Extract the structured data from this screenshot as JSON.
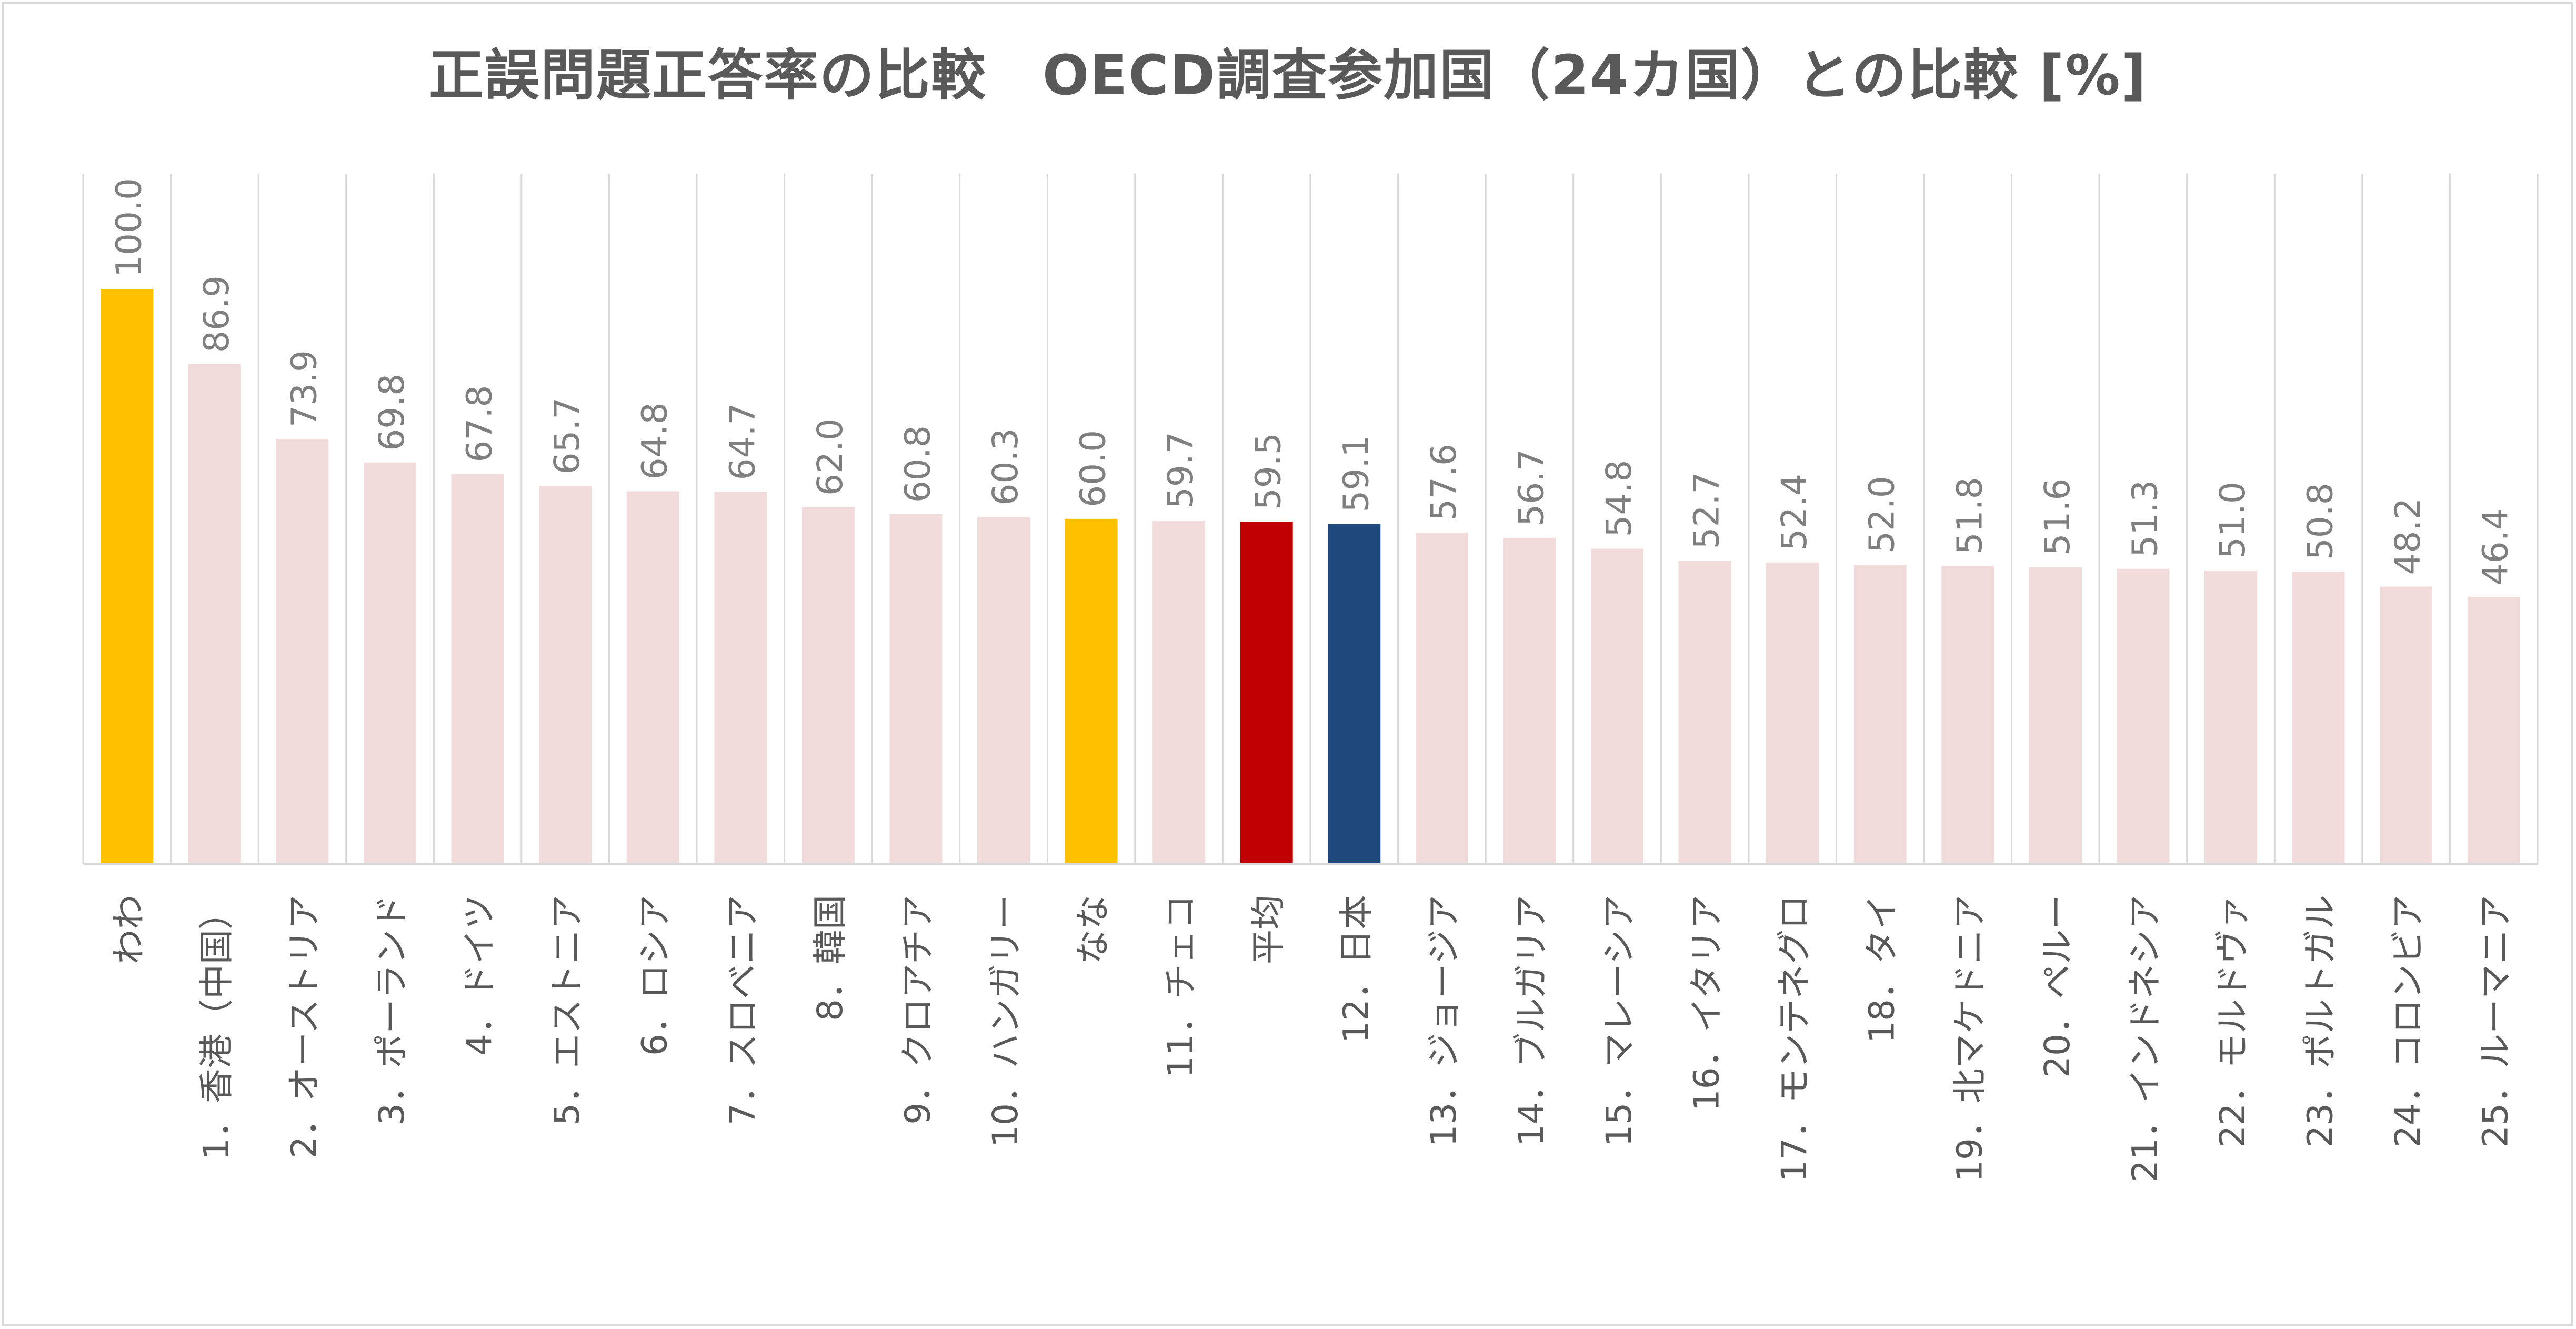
{
  "chart_data": {
    "type": "bar",
    "title": "正誤問題正答率の比較　OECD調査参加国（24カ国）との比較 [%]",
    "xlabel": "",
    "ylabel": "",
    "ylim": [
      0,
      100
    ],
    "grid": "vertical separators only",
    "legend": "none",
    "categories": [
      "わわ",
      "1．香港（中国）",
      "2．オーストリア",
      "3．ポーランド",
      "4．ドイツ",
      "5．エストニア",
      "6．ロシア",
      "7．スロベニア",
      "8．韓国",
      "9．クロアチア",
      "10．ハンガリー",
      "なな",
      "11．チェコ",
      "平均",
      "12．日本",
      "13．ジョージア",
      "14．ブルガリア",
      "15．マレーシア",
      "16．イタリア",
      "17．モンテネグロ",
      "18．タイ",
      "19．北マケドニア",
      "20．ペルー",
      "21．インドネシア",
      "22．モルドヴァ",
      "23．ポルトガル",
      "24．コロンビア",
      "25．ルーマニア"
    ],
    "values": [
      100.0,
      86.9,
      73.9,
      69.8,
      67.8,
      65.7,
      64.8,
      64.7,
      62.0,
      60.8,
      60.3,
      60.0,
      59.7,
      59.5,
      59.1,
      57.6,
      56.7,
      54.8,
      52.7,
      52.4,
      52.0,
      51.8,
      51.6,
      51.3,
      51.0,
      50.8,
      48.2,
      46.4
    ],
    "value_labels": [
      "100.0",
      "86.9",
      "73.9",
      "69.8",
      "67.8",
      "65.7",
      "64.8",
      "64.7",
      "62.0",
      "60.8",
      "60.3",
      "60.0",
      "59.7",
      "59.5",
      "59.1",
      "57.6",
      "56.7",
      "54.8",
      "52.7",
      "52.4",
      "52.0",
      "51.8",
      "51.6",
      "51.3",
      "51.0",
      "50.8",
      "48.2",
      "46.4"
    ],
    "bar_colors": [
      "#ffc000",
      "#f2dcdb",
      "#f2dcdb",
      "#f2dcdb",
      "#f2dcdb",
      "#f2dcdb",
      "#f2dcdb",
      "#f2dcdb",
      "#f2dcdb",
      "#f2dcdb",
      "#f2dcdb",
      "#ffc000",
      "#f2dcdb",
      "#c00000",
      "#1f497d",
      "#f2dcdb",
      "#f2dcdb",
      "#f2dcdb",
      "#f2dcdb",
      "#f2dcdb",
      "#f2dcdb",
      "#f2dcdb",
      "#f2dcdb",
      "#f2dcdb",
      "#f2dcdb",
      "#f2dcdb",
      "#f2dcdb",
      "#f2dcdb"
    ]
  }
}
